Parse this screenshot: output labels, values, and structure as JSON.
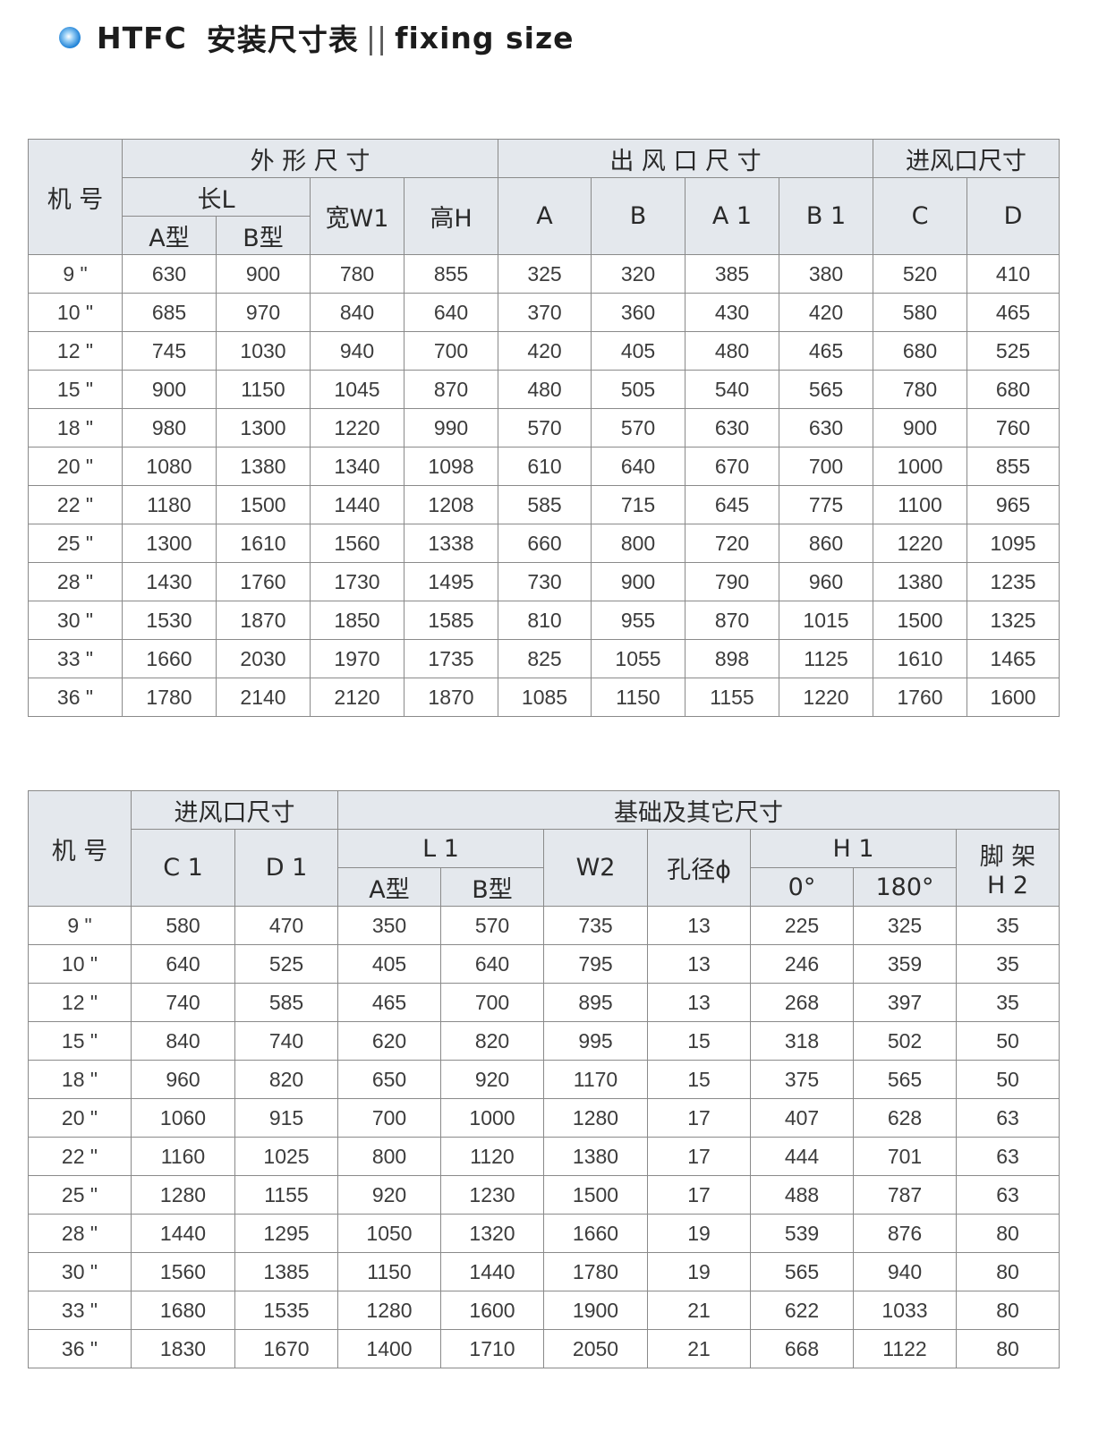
{
  "title": {
    "model": "HTFC",
    "cn": "安装尺寸表",
    "sep": "||",
    "en": "fixing size"
  },
  "table1": {
    "h_model": "机 号",
    "h_outer": "外 形 尺 寸",
    "h_outlet": "出 风 口 尺 寸",
    "h_inlet": "进风口尺寸",
    "h_len": "长L",
    "h_a": "A型",
    "h_b": "B型",
    "h_w1": "宽W1",
    "h_h": "高H",
    "cols": [
      "A",
      "B",
      "A 1",
      "B 1",
      "C",
      "D"
    ],
    "rows": [
      [
        "9 \"",
        "630",
        "900",
        "780",
        "855",
        "325",
        "320",
        "385",
        "380",
        "520",
        "410"
      ],
      [
        "10 \"",
        "685",
        "970",
        "840",
        "640",
        "370",
        "360",
        "430",
        "420",
        "580",
        "465"
      ],
      [
        "12 \"",
        "745",
        "1030",
        "940",
        "700",
        "420",
        "405",
        "480",
        "465",
        "680",
        "525"
      ],
      [
        "15 \"",
        "900",
        "1150",
        "1045",
        "870",
        "480",
        "505",
        "540",
        "565",
        "780",
        "680"
      ],
      [
        "18 \"",
        "980",
        "1300",
        "1220",
        "990",
        "570",
        "570",
        "630",
        "630",
        "900",
        "760"
      ],
      [
        "20 \"",
        "1080",
        "1380",
        "1340",
        "1098",
        "610",
        "640",
        "670",
        "700",
        "1000",
        "855"
      ],
      [
        "22 \"",
        "1180",
        "1500",
        "1440",
        "1208",
        "585",
        "715",
        "645",
        "775",
        "1100",
        "965"
      ],
      [
        "25 \"",
        "1300",
        "1610",
        "1560",
        "1338",
        "660",
        "800",
        "720",
        "860",
        "1220",
        "1095"
      ],
      [
        "28 \"",
        "1430",
        "1760",
        "1730",
        "1495",
        "730",
        "900",
        "790",
        "960",
        "1380",
        "1235"
      ],
      [
        "30 \"",
        "1530",
        "1870",
        "1850",
        "1585",
        "810",
        "955",
        "870",
        "1015",
        "1500",
        "1325"
      ],
      [
        "33 \"",
        "1660",
        "2030",
        "1970",
        "1735",
        "825",
        "1055",
        "898",
        "1125",
        "1610",
        "1465"
      ],
      [
        "36 \"",
        "1780",
        "2140",
        "2120",
        "1870",
        "1085",
        "1150",
        "1155",
        "1220",
        "1760",
        "1600"
      ]
    ]
  },
  "table2": {
    "h_model": "机 号",
    "h_inlet": "进风口尺寸",
    "h_base": "基础及其它尺寸",
    "h_c1": "C 1",
    "h_d1": "D 1",
    "h_l1": "L 1",
    "h_a": "A型",
    "h_b": "B型",
    "h_w2": "W2",
    "h_hole": "孔径ϕ",
    "h_h1": "H 1",
    "h_0": "0°",
    "h_180": "180°",
    "h_h2a": "脚 架",
    "h_h2b": "H 2",
    "rows": [
      [
        "9 \"",
        "580",
        "470",
        "350",
        "570",
        "735",
        "13",
        "225",
        "325",
        "35"
      ],
      [
        "10 \"",
        "640",
        "525",
        "405",
        "640",
        "795",
        "13",
        "246",
        "359",
        "35"
      ],
      [
        "12 \"",
        "740",
        "585",
        "465",
        "700",
        "895",
        "13",
        "268",
        "397",
        "35"
      ],
      [
        "15 \"",
        "840",
        "740",
        "620",
        "820",
        "995",
        "15",
        "318",
        "502",
        "50"
      ],
      [
        "18 \"",
        "960",
        "820",
        "650",
        "920",
        "1170",
        "15",
        "375",
        "565",
        "50"
      ],
      [
        "20 \"",
        "1060",
        "915",
        "700",
        "1000",
        "1280",
        "17",
        "407",
        "628",
        "63"
      ],
      [
        "22 \"",
        "1160",
        "1025",
        "800",
        "1120",
        "1380",
        "17",
        "444",
        "701",
        "63"
      ],
      [
        "25 \"",
        "1280",
        "1155",
        "920",
        "1230",
        "1500",
        "17",
        "488",
        "787",
        "63"
      ],
      [
        "28 \"",
        "1440",
        "1295",
        "1050",
        "1320",
        "1660",
        "19",
        "539",
        "876",
        "80"
      ],
      [
        "30 \"",
        "1560",
        "1385",
        "1150",
        "1440",
        "1780",
        "19",
        "565",
        "940",
        "80"
      ],
      [
        "33 \"",
        "1680",
        "1535",
        "1280",
        "1600",
        "1900",
        "21",
        "622",
        "1033",
        "80"
      ],
      [
        "36 \"",
        "1830",
        "1670",
        "1400",
        "1710",
        "2050",
        "21",
        "668",
        "1122",
        "80"
      ]
    ]
  }
}
